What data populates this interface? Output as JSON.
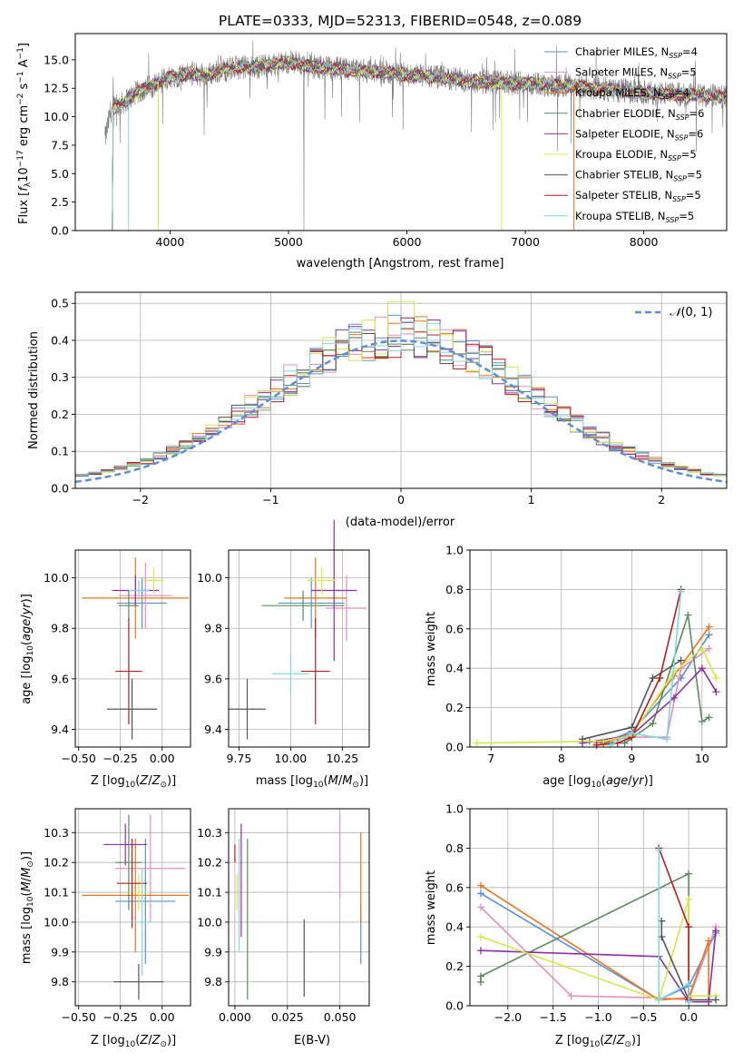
{
  "chart_data": [
    {
      "type": "line",
      "title": "PLATE=0333, MJD=52313, FIBERID=0548, z=0.089",
      "xlabel": "wavelength [Angstrom, rest frame]",
      "ylabel": "Flux [f_λ 10^-17 erg cm^-2 s^-1 A^-1]",
      "xlim": [
        3200,
        8700
      ],
      "ylim": [
        0,
        17.3
      ],
      "xticks": [
        "4000",
        "5000",
        "6000",
        "7000",
        "8000"
      ],
      "yticks": [
        "0.0",
        "2.5",
        "5.0",
        "7.5",
        "10.0",
        "12.5",
        "15.0"
      ],
      "grid": false,
      "legend_position": "right",
      "legend": [
        {
          "label": "Chabrier MILES, N_SSP=4",
          "color": "#5b8fd6"
        },
        {
          "label": "Salpeter MILES, N_SSP=5",
          "color": "#e68fbf"
        },
        {
          "label": "Kroupa MILES, N_SSP=4",
          "color": "#e8761e"
        },
        {
          "label": "Chabrier ELODIE, N_SSP=6",
          "color": "#5a8a60"
        },
        {
          "label": "Salpeter ELODIE, N_SSP=6",
          "color": "#8e2ea8"
        },
        {
          "label": "Kroupa ELODIE, N_SSP=5",
          "color": "#d4e84a"
        },
        {
          "label": "Chabrier STELIB, N_SSP=5",
          "color": "#555555"
        },
        {
          "label": "Salpeter STELIB, N_SSP=5",
          "color": "#b41e1e"
        },
        {
          "label": "Kroupa STELIB, N_SSP=5",
          "color": "#7fd8dc"
        }
      ],
      "data_color": "#808080",
      "spectrum_anchor_points": {
        "x": [
          3450,
          3500,
          3600,
          3700,
          3800,
          3900,
          4000,
          4100,
          4200,
          4300,
          4400,
          4500,
          4600,
          4700,
          4800,
          4900,
          5000,
          5200,
          5400,
          5600,
          5800,
          6000,
          6200,
          6400,
          6600,
          6800,
          7000,
          7200,
          7400,
          7600,
          7800,
          8000,
          8200,
          8400,
          8600,
          8700
        ],
        "y": [
          8.0,
          10.5,
          11.2,
          12.0,
          12.5,
          13.0,
          13.5,
          13.7,
          13.8,
          13.6,
          14.0,
          14.2,
          14.4,
          14.3,
          14.5,
          14.6,
          14.8,
          14.4,
          14.2,
          14.0,
          13.9,
          13.7,
          13.5,
          13.3,
          13.1,
          13.0,
          12.9,
          12.8,
          12.7,
          12.5,
          12.3,
          12.1,
          12.0,
          11.9,
          11.8,
          11.7
        ]
      }
    },
    {
      "type": "bar",
      "subtype": "step-histogram",
      "xlabel": "(data-model)/error",
      "ylabel": "Normed distribution",
      "xlim": [
        -2.5,
        2.5
      ],
      "ylim": [
        0,
        0.53
      ],
      "xticks": [
        "−2",
        "−1",
        "0",
        "1",
        "2"
      ],
      "yticks": [
        "0.0",
        "0.1",
        "0.2",
        "0.3",
        "0.4",
        "0.5"
      ],
      "grid": true,
      "legend": [
        {
          "label": "𝒩(0,1)",
          "color": "#5b8fd6",
          "style": "dashed"
        }
      ],
      "legend_position": "top-right",
      "bin_width": 0.1,
      "series_colors": [
        "#5b8fd6",
        "#e68fbf",
        "#e8761e",
        "#5a8a60",
        "#8e2ea8",
        "#d4e84a",
        "#555555",
        "#b41e1e",
        "#7fd8dc"
      ]
    },
    {
      "type": "scatter",
      "subtype": "errorbar",
      "xlabel": "Z [log10(Z/Z⊙)]",
      "ylabel": "age  [log10(age/yr)]",
      "xlim": [
        -0.52,
        0.17
      ],
      "ylim": [
        9.33,
        10.11
      ],
      "xticks": [
        "−0.50",
        "−0.25",
        "0.00"
      ],
      "yticks": [
        "9.4",
        "9.6",
        "9.8",
        "10.0"
      ],
      "grid": true,
      "points": [
        {
          "series": "Chabrier MILES",
          "x": -0.12,
          "y": 9.9,
          "xerr": 0.15,
          "yerr": 0.1
        },
        {
          "series": "Salpeter MILES",
          "x": -0.1,
          "y": 9.93,
          "xerr": 0.16,
          "yerr": 0.13
        },
        {
          "series": "Kroupa MILES",
          "x": -0.16,
          "y": 9.92,
          "xerr": 0.32,
          "yerr": 0.16
        },
        {
          "series": "Chabrier ELODIE",
          "x": -0.2,
          "y": 9.89,
          "xerr": 0.06,
          "yerr": 0.06
        },
        {
          "series": "Salpeter ELODIE",
          "x": -0.16,
          "y": 9.95,
          "xerr": 0.14,
          "yerr": 0.06
        },
        {
          "series": "Kroupa ELODIE",
          "x": -0.05,
          "y": 9.99,
          "xerr": 0.06,
          "yerr": 0.05
        },
        {
          "series": "Chabrier STELIB",
          "x": -0.18,
          "y": 9.48,
          "xerr": 0.15,
          "yerr": 0.12
        },
        {
          "series": "Salpeter STELIB",
          "x": -0.2,
          "y": 9.63,
          "xerr": 0.08,
          "yerr": 0.21
        },
        {
          "series": "Kroupa STELIB",
          "x": -0.14,
          "y": 9.95,
          "xerr": 0.06,
          "yerr": 0.04
        }
      ]
    },
    {
      "type": "scatter",
      "subtype": "errorbar",
      "xlabel": "mass [log10(M/M⊙)]",
      "ylabel": "",
      "xlim": [
        9.7,
        10.38
      ],
      "ylim": [
        9.33,
        10.11
      ],
      "xticks": [
        "9.75",
        "10.00",
        "10.25"
      ],
      "yticks": [
        "9.4",
        "9.6",
        "9.8",
        "10.0"
      ],
      "grid": true,
      "points": [
        {
          "series": "Chabrier MILES",
          "x": 10.1,
          "y": 9.9,
          "xerr": 0.16,
          "yerr": 0.1
        },
        {
          "series": "Salpeter MILES",
          "x": 10.27,
          "y": 9.88,
          "xerr": 0.1,
          "yerr": 0.13
        },
        {
          "series": "Kroupa MILES",
          "x": 10.12,
          "y": 9.92,
          "xerr": 0.15,
          "yerr": 0.16
        },
        {
          "series": "Chabrier ELODIE",
          "x": 10.06,
          "y": 9.89,
          "xerr": 0.2,
          "yerr": 0.06
        },
        {
          "series": "Salpeter ELODIE",
          "x": 10.21,
          "y": 9.95,
          "xerr": 0.11,
          "yerr": 0.28
        },
        {
          "series": "Kroupa ELODIE",
          "x": 10.15,
          "y": 9.99,
          "xerr": 0.07,
          "yerr": 0.05
        },
        {
          "series": "Chabrier STELIB",
          "x": 9.79,
          "y": 9.48,
          "xerr": 0.09,
          "yerr": 0.12
        },
        {
          "series": "Salpeter STELIB",
          "x": 10.12,
          "y": 9.63,
          "xerr": 0.07,
          "yerr": 0.21
        },
        {
          "series": "Kroupa STELIB",
          "x": 10.0,
          "y": 9.62,
          "xerr": 0.09,
          "yerr": 0.08
        }
      ]
    },
    {
      "type": "line",
      "xlabel": "age  [log10(age/yr)]",
      "ylabel": "mass weight",
      "xlim": [
        6.7,
        10.35
      ],
      "ylim": [
        0,
        1.0
      ],
      "xticks": [
        "7",
        "8",
        "9",
        "10"
      ],
      "yticks": [
        "0.0",
        "0.2",
        "0.4",
        "0.6",
        "0.8",
        "1.0"
      ],
      "grid": true,
      "series": [
        {
          "name": "Chabrier MILES",
          "color": "#5b8fd6",
          "x": [
            8.6,
            9.0,
            9.7,
            10.1
          ],
          "y": [
            0.02,
            0.08,
            0.35,
            0.57
          ]
        },
        {
          "name": "Salpeter MILES",
          "color": "#e68fbf",
          "x": [
            8.5,
            9.0,
            9.5,
            9.7,
            10.1
          ],
          "y": [
            0.02,
            0.05,
            0.05,
            0.4,
            0.5
          ]
        },
        {
          "name": "Kroupa MILES",
          "color": "#e8761e",
          "x": [
            8.6,
            9.0,
            9.6,
            10.1
          ],
          "y": [
            0.02,
            0.07,
            0.36,
            0.61
          ]
        },
        {
          "name": "Chabrier ELODIE",
          "color": "#5a8a60",
          "x": [
            8.4,
            8.9,
            9.3,
            9.8,
            10.0,
            10.1
          ],
          "y": [
            0.03,
            0.02,
            0.12,
            0.67,
            0.13,
            0.15
          ]
        },
        {
          "name": "Salpeter ELODIE",
          "color": "#8e2ea8",
          "x": [
            8.3,
            9.0,
            9.6,
            10.0,
            10.2
          ],
          "y": [
            0.02,
            0.06,
            0.25,
            0.4,
            0.28
          ]
        },
        {
          "name": "Kroupa ELODIE",
          "color": "#d4e84a",
          "x": [
            6.8,
            8.6,
            9.0,
            9.6,
            10.0,
            10.2
          ],
          "y": [
            0.02,
            0.03,
            0.06,
            0.38,
            0.5,
            0.35
          ]
        },
        {
          "name": "Chabrier STELIB",
          "color": "#555555",
          "x": [
            8.3,
            9.0,
            9.3,
            9.7
          ],
          "y": [
            0.04,
            0.1,
            0.35,
            0.44
          ]
        },
        {
          "name": "Salpeter STELIB",
          "color": "#b41e1e",
          "x": [
            8.5,
            8.8,
            9.0,
            9.4,
            9.7
          ],
          "y": [
            0.01,
            0.02,
            0.05,
            0.35,
            0.8
          ]
        },
        {
          "name": "Kroupa STELIB",
          "color": "#7fd8dc",
          "x": [
            8.7,
            9.0,
            9.5,
            9.7
          ],
          "y": [
            0.01,
            0.07,
            0.04,
            0.79
          ]
        }
      ]
    },
    {
      "type": "scatter",
      "subtype": "errorbar",
      "xlabel": "Z [log10(Z/Z⊙)]",
      "ylabel": "mass [log10(M/M⊙)]",
      "xlim": [
        -0.52,
        0.17
      ],
      "ylim": [
        9.72,
        10.38
      ],
      "xticks": [
        "−0.50",
        "−0.25",
        "0.00"
      ],
      "yticks": [
        "9.8",
        "9.9",
        "10.0",
        "10.1",
        "10.2",
        "10.3"
      ],
      "grid": true,
      "points": [
        {
          "series": "Chabrier MILES",
          "x": -0.1,
          "y": 10.07,
          "xerr": 0.18,
          "yerr": 0.21
        },
        {
          "series": "Salpeter MILES",
          "x": -0.07,
          "y": 10.18,
          "xerr": 0.21,
          "yerr": 0.18
        },
        {
          "series": "Kroupa MILES",
          "x": -0.16,
          "y": 10.09,
          "xerr": 0.32,
          "yerr": 0.19
        },
        {
          "series": "Chabrier ELODIE",
          "x": -0.2,
          "y": 10.2,
          "xerr": 0.08,
          "yerr": 0.16
        },
        {
          "series": "Salpeter ELODIE",
          "x": -0.22,
          "y": 10.26,
          "xerr": 0.13,
          "yerr": 0.07
        },
        {
          "series": "Kroupa ELODIE",
          "x": -0.14,
          "y": 10.1,
          "xerr": 0.06,
          "yerr": 0.06
        },
        {
          "series": "Chabrier STELIB",
          "x": -0.14,
          "y": 9.8,
          "xerr": 0.15,
          "yerr": 0.06
        },
        {
          "series": "Salpeter STELIB",
          "x": -0.18,
          "y": 10.13,
          "xerr": 0.09,
          "yerr": 0.15
        },
        {
          "series": "Kroupa STELIB",
          "x": -0.12,
          "y": 10.0,
          "xerr": 0.06,
          "yerr": 0.18
        }
      ]
    },
    {
      "type": "scatter",
      "subtype": "errorbar",
      "xlabel": "E(B-V)",
      "ylabel": "",
      "xlim": [
        -0.003,
        0.064
      ],
      "ylim": [
        9.72,
        10.38
      ],
      "xticks": [
        "0.000",
        "0.025",
        "0.050"
      ],
      "yticks": [
        "9.8",
        "9.9",
        "10.0",
        "10.1",
        "10.2",
        "10.3"
      ],
      "grid": true,
      "points": [
        {
          "series": "Chabrier MILES",
          "x": 0.06,
          "y": 9.96,
          "yerr": 0.1
        },
        {
          "series": "Salpeter MILES",
          "x": 0.05,
          "y": 10.22,
          "yerr": 0.14
        },
        {
          "series": "Kroupa MILES",
          "x": 0.06,
          "y": 10.15,
          "yerr": 0.15
        },
        {
          "series": "Chabrier ELODIE",
          "x": 0.006,
          "y": 10.01,
          "yerr": 0.27
        },
        {
          "series": "Salpeter ELODIE",
          "x": 0.003,
          "y": 10.14,
          "yerr": 0.19
        },
        {
          "series": "Kroupa ELODIE",
          "x": 0.001,
          "y": 10.1,
          "yerr": 0.06
        },
        {
          "series": "Chabrier STELIB",
          "x": 0.033,
          "y": 9.88,
          "yerr": 0.13
        },
        {
          "series": "Salpeter STELIB",
          "x": 0.0,
          "y": 10.23,
          "yerr": 0.03
        },
        {
          "series": "Kroupa STELIB",
          "x": 0.002,
          "y": 10.09,
          "yerr": 0.19
        }
      ]
    },
    {
      "type": "line",
      "xlabel": "Z [log10(Z/Z⊙)]",
      "ylabel": "mass weight",
      "xlim": [
        -2.42,
        0.42
      ],
      "ylim": [
        0,
        1.0
      ],
      "xticks": [
        "−2.0",
        "−1.5",
        "−1.0",
        "−0.5",
        "0.0"
      ],
      "yticks": [
        "0.0",
        "0.2",
        "0.4",
        "0.6",
        "0.8",
        "1.0"
      ],
      "grid": true,
      "series": [
        {
          "name": "Chabrier MILES",
          "color": "#5b8fd6",
          "x": [
            -2.3,
            -0.33,
            0.0,
            0.3
          ],
          "y": [
            0.57,
            0.03,
            0.1,
            0.37
          ]
        },
        {
          "name": "Salpeter MILES",
          "color": "#e68fbf",
          "x": [
            -2.3,
            -1.3,
            -0.33,
            0.0,
            0.3
          ],
          "y": [
            0.5,
            0.05,
            0.04,
            0.03,
            0.4
          ]
        },
        {
          "name": "Kroupa MILES",
          "color": "#e8761e",
          "x": [
            -2.3,
            -0.33,
            0.0,
            0.22,
            0.22
          ],
          "y": [
            0.61,
            0.03,
            0.04,
            0.33,
            0.02
          ]
        },
        {
          "name": "Chabrier ELODIE",
          "color": "#5a8a60",
          "x": [
            -2.3,
            -2.3,
            0.0,
            0.0
          ],
          "y": [
            0.12,
            0.15,
            0.67,
            0.02
          ]
        },
        {
          "name": "Salpeter ELODIE",
          "color": "#8e2ea8",
          "x": [
            -2.3,
            -0.33,
            0.0,
            0.22,
            0.3
          ],
          "y": [
            0.28,
            0.25,
            0.02,
            0.02,
            0.38
          ]
        },
        {
          "name": "Kroupa ELODIE",
          "color": "#d4e84a",
          "x": [
            -2.3,
            -0.33,
            0.0,
            0.0,
            0.3
          ],
          "y": [
            0.35,
            0.03,
            0.54,
            0.05,
            0.05
          ]
        },
        {
          "name": "Chabrier STELIB",
          "color": "#555555",
          "x": [
            -0.3,
            -0.3,
            0.0,
            0.3
          ],
          "y": [
            0.43,
            0.35,
            0.03,
            0.03
          ]
        },
        {
          "name": "Salpeter STELIB",
          "color": "#b41e1e",
          "x": [
            -0.33,
            0.0,
            0.0
          ],
          "y": [
            0.8,
            0.4,
            0.03
          ]
        },
        {
          "name": "Kroupa STELIB",
          "color": "#7fd8dc",
          "x": [
            -0.33,
            -0.33,
            0.0,
            0.0
          ],
          "y": [
            0.79,
            0.03,
            0.11,
            0.02
          ]
        }
      ]
    }
  ]
}
